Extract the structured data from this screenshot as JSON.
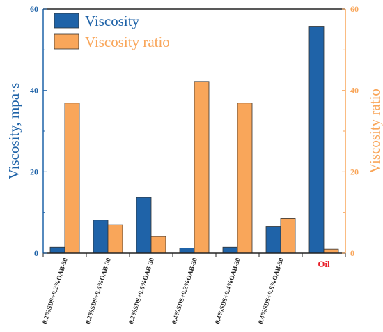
{
  "chart_data": {
    "type": "bar",
    "categories": [
      "0.2%SDS+0.2%OAB-30",
      "0.2%SDS+0.4%OAB-30",
      "0.2%SDS+0.6%OAB-30",
      "0.4%SDS+0.2%OAB-30",
      "0.4%SDS+0.4%OAB-30",
      "0.4%SDS+0.6%OAB-30",
      "Oil"
    ],
    "series": [
      {
        "name": "Viscosity",
        "axis": "left",
        "color": "#1f63a8",
        "values": [
          1.5,
          8.1,
          13.7,
          1.3,
          1.5,
          6.6,
          55.8
        ]
      },
      {
        "name": "Viscosity ratio",
        "axis": "right",
        "color": "#f9a65a",
        "values": [
          36.9,
          7.0,
          4.1,
          42.2,
          36.9,
          8.5,
          1.0
        ]
      }
    ],
    "ylabel": "Viscosity, mpa·s",
    "ylabel_right": "Viscosity ratio",
    "ylim": [
      0,
      60
    ],
    "ylim_right": [
      0,
      60
    ],
    "yticks": [
      0,
      20,
      40,
      60
    ],
    "yticks_right": [
      0,
      20,
      40,
      60
    ],
    "left_axis_color": "#1f63a8",
    "right_axis_color": "#f9a65a",
    "highlight_category_color": "#e8202a",
    "legend_position": "top-left",
    "grid": false
  }
}
